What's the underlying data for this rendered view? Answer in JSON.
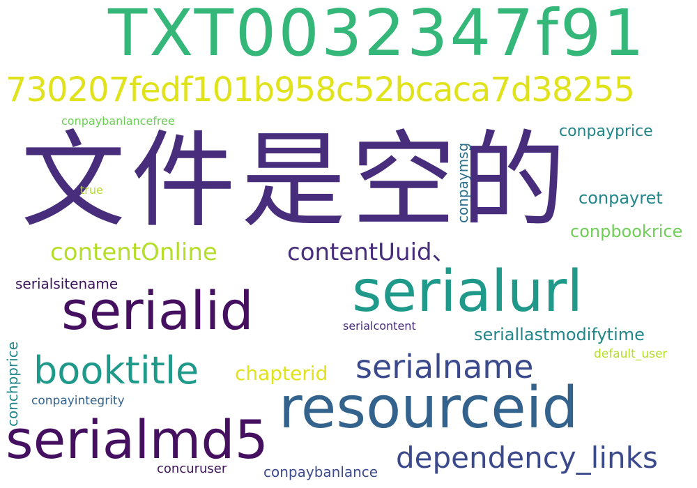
{
  "words": {
    "w_txt": "TXT0032347f91",
    "w_hash": "730207fedf101b958c52bcaca7d38255",
    "w_empty": "文件是空的",
    "w_content_online": "contentOnline",
    "w_content_uuid": "contentUuid、",
    "w_serialurl": "serialurl",
    "w_serialid": "serialid",
    "w_booktitle": "booktitle",
    "w_serialname": "serialname",
    "w_resourceid": "resourceid",
    "w_serialmd5": "serialmd5",
    "w_dependency_links": "dependency_links",
    "w_conpaybanlancefree": "conpaybanlancefree",
    "w_conpayprice": "conpayprice",
    "w_conpaymsg": "conpaymsg",
    "w_true": "true",
    "w_conpayret": "conpayret",
    "w_conpbookrice": "conpbookrice",
    "w_serialsitename": "serialsitename",
    "w_serialcontent": "serialcontent",
    "w_seriallastmodifytime": "seriallastmodifytime",
    "w_default_user": "default_user",
    "w_conchpprice": "conchpprice",
    "w_chapterid": "chapterid",
    "w_conpayintegrity": "conpayintegrity",
    "w_concuruser": "concuruser",
    "w_conpaybanlance": "conpaybanlance"
  },
  "colors": {
    "palette": "viridis",
    "background": "#ffffff"
  }
}
